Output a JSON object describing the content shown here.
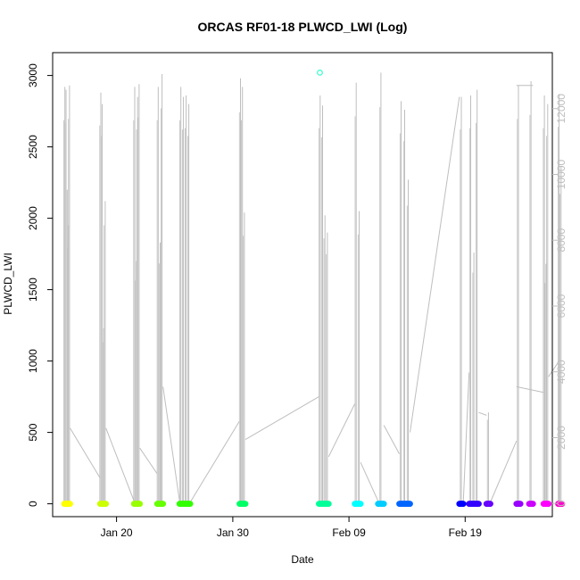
{
  "chart_data": {
    "type": "scatter",
    "title": "ORCAS RF01-18 PLWCD_LWI (Log)",
    "xlabel": "Date",
    "ylabel": "PLWCD_LWI",
    "xlim": [
      "2016-01-14T12:00",
      "2016-02-26T12:00"
    ],
    "ylim": [
      -90,
      3160
    ],
    "y2lim": [
      -400,
      13700
    ],
    "x_ticks": [
      {
        "date": "2016-01-20",
        "label": "Jan 20"
      },
      {
        "date": "2016-01-30",
        "label": "Jan 30"
      },
      {
        "date": "2016-02-09",
        "label": "Feb 09"
      },
      {
        "date": "2016-02-19",
        "label": "Feb 19"
      }
    ],
    "y_ticks": [
      0,
      500,
      1000,
      1500,
      2000,
      2500,
      3000
    ],
    "y2_ticks": [
      0,
      2000,
      4000,
      6000,
      8000,
      10000,
      12000
    ],
    "secondary_series_color": "#bebebe",
    "flights": [
      {
        "start": "2016-01-15T12:00",
        "end": "2016-01-16T00:00",
        "color": "#ffff00",
        "peaks": [
          2920,
          2900,
          2200,
          1950,
          2930
        ]
      },
      {
        "start": "2016-01-18T14:00",
        "end": "2016-01-19T02:00",
        "color": "#ccff00",
        "peaks": [
          2880,
          2800,
          1230,
          2120
        ]
      },
      {
        "start": "2016-01-21T12:00",
        "end": "2016-01-22T00:00",
        "color": "#99ff00",
        "peaks": [
          2920,
          1700,
          2850,
          2940
        ]
      },
      {
        "start": "2016-01-23T12:00",
        "end": "2016-01-24T00:00",
        "color": "#66ff00",
        "peaks": [
          2920,
          1830,
          3010
        ]
      },
      {
        "start": "2016-01-25T10:00",
        "end": "2016-01-26T08:00",
        "color": "#33ff00",
        "peaks": [
          2920,
          2850,
          2860,
          2800
        ]
      },
      {
        "start": "2016-01-30T14:00",
        "end": "2016-01-31T02:00",
        "color": "#00ff66",
        "peaks": [
          2980,
          2920,
          2040
        ]
      },
      {
        "start": "2016-02-06T10:00",
        "end": "2016-02-07T06:00",
        "color": "#00ff99",
        "peaks": [
          2860,
          2790,
          2020,
          1900
        ]
      },
      {
        "start": "2016-02-09T12:00",
        "end": "2016-02-10T00:00",
        "color": "#00ffff",
        "peaks": [
          2950,
          2050
        ]
      },
      {
        "start": "2016-02-11T12:00",
        "end": "2016-02-12T00:00",
        "color": "#00ccff",
        "peaks": [
          3020
        ]
      },
      {
        "start": "2016-02-13T08:00",
        "end": "2016-02-14T06:00",
        "color": "#0066ff",
        "peaks": [
          2820,
          2760,
          2270
        ]
      },
      {
        "start": "2016-02-18T12:00",
        "end": "2016-02-18T20:00",
        "color": "#0000ff",
        "peaks": [
          2850
        ]
      },
      {
        "start": "2016-02-19T08:00",
        "end": "2016-02-20T04:00",
        "color": "#3300ff",
        "peaks": [
          2860,
          1760,
          2900
        ]
      },
      {
        "start": "2016-02-20T20:00",
        "end": "2016-02-21T04:00",
        "color": "#6600ff",
        "peaks": [
          640
        ]
      },
      {
        "start": "2016-02-23T10:00",
        "end": "2016-02-23T18:00",
        "color": "#9900ff",
        "peaks": [
          2930
        ]
      },
      {
        "start": "2016-02-24T12:00",
        "end": "2016-02-24T20:00",
        "color": "#cc00ff",
        "peaks": [
          2960
        ]
      },
      {
        "start": "2016-02-25T18:00",
        "end": "2016-02-26T04:00",
        "color": "#ff00ff",
        "peaks": [
          2860,
          1680,
          2800
        ]
      },
      {
        "start": "2016-02-27T00:00",
        "end": "2016-02-27T08:00",
        "color": "#ff00cc",
        "peaks": [
          2870,
          2360
        ]
      }
    ],
    "outliers": [
      {
        "date": "2016-02-06T12:00",
        "value": 3020,
        "color": "#33ffcc"
      }
    ],
    "connectors": [
      [
        [
          "2016-01-16T00:00",
          530
        ],
        [
          "2016-01-18T14:00",
          180
        ]
      ],
      [
        [
          "2016-01-19T02:00",
          530
        ],
        [
          "2016-01-21T12:00",
          20
        ]
      ],
      [
        [
          "2016-01-22T00:00",
          390
        ],
        [
          "2016-01-23T12:00",
          210
        ]
      ],
      [
        [
          "2016-01-24T00:00",
          820
        ],
        [
          "2016-01-25T10:00",
          20
        ]
      ],
      [
        [
          "2016-01-26T08:00",
          10
        ],
        [
          "2016-01-30T14:00",
          580
        ]
      ],
      [
        [
          "2016-01-31T02:00",
          450
        ],
        [
          "2016-02-06T10:00",
          750
        ]
      ],
      [
        [
          "2016-02-07T06:00",
          330
        ],
        [
          "2016-02-09T12:00",
          700
        ]
      ],
      [
        [
          "2016-02-10T00:00",
          290
        ],
        [
          "2016-02-11T12:00",
          20
        ]
      ],
      [
        [
          "2016-02-12T00:00",
          550
        ],
        [
          "2016-02-13T08:00",
          350
        ]
      ],
      [
        [
          "2016-02-14T06:00",
          500
        ],
        [
          "2016-02-18T12:00",
          2850
        ]
      ],
      [
        [
          "2016-02-18T20:00",
          10
        ],
        [
          "2016-02-19T08:00",
          920
        ]
      ],
      [
        [
          "2016-02-20T04:00",
          640
        ],
        [
          "2016-02-20T20:00",
          620
        ]
      ],
      [
        [
          "2016-02-21T04:00",
          10
        ],
        [
          "2016-02-23T10:00",
          440
        ]
      ],
      [
        [
          "2016-02-23T10:00",
          2930
        ],
        [
          "2016-02-24T20:00",
          2930
        ]
      ],
      [
        [
          "2016-02-23T10:00",
          820
        ],
        [
          "2016-02-25T18:00",
          780
        ]
      ],
      [
        [
          "2016-02-26T04:00",
          890
        ],
        [
          "2016-02-27T00:00",
          990
        ]
      ]
    ]
  }
}
